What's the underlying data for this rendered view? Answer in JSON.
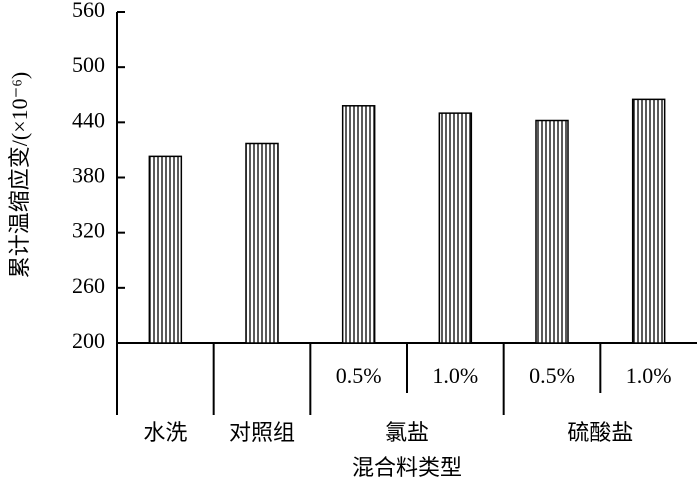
{
  "chart_data": {
    "type": "bar",
    "y_label": "累计温缩应变/(×10⁻⁶)",
    "x_label": "混合料类型",
    "groups": [
      {
        "name": "水洗",
        "categories": [
          null
        ]
      },
      {
        "name": "对照组",
        "categories": [
          null
        ]
      },
      {
        "name": "氯盐",
        "categories": [
          "0.5%",
          "1.0%"
        ]
      },
      {
        "name": "硫酸盐",
        "categories": [
          "0.5%",
          "1.0%"
        ]
      }
    ],
    "values": [
      403,
      417,
      458,
      450,
      442,
      465
    ],
    "color": "#000000",
    "ylim": [
      200,
      560
    ],
    "yticks": [
      200,
      260,
      320,
      380,
      440,
      500,
      560
    ],
    "grid": false
  }
}
